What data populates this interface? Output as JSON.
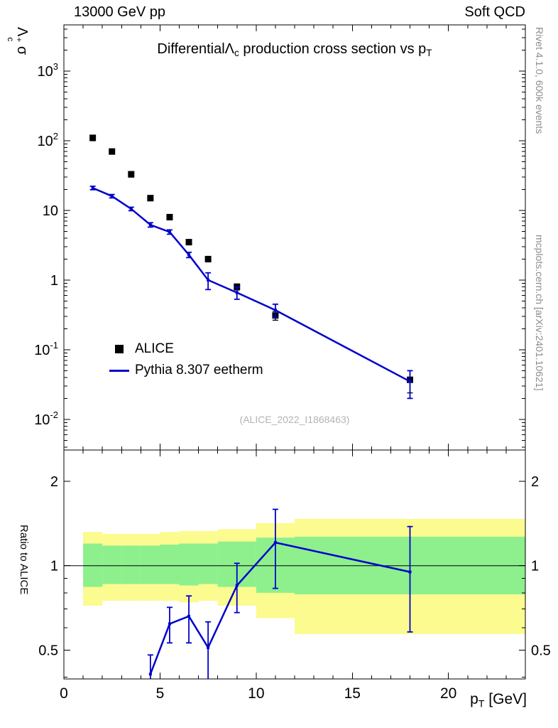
{
  "header": {
    "left": "13000 GeV pp",
    "right": "Soft QCD"
  },
  "title": {
    "pre": "Differential",
    "lambda": "Λ",
    "lambda_sub": "c",
    "mid": " production cross section vs p",
    "sub": "T"
  },
  "axis_labels": {
    "y_main": {
      "lambda": "Λ",
      "sup": "+",
      "sub": "c",
      "rest": " σ"
    },
    "y_ratio": "Ratio to ALICE",
    "x": {
      "base": "p",
      "sub": "T",
      "rest": " [GeV]"
    }
  },
  "legend": {
    "items": [
      {
        "label": "ALICE"
      },
      {
        "label": "Pythia 8.307 eetherm"
      }
    ]
  },
  "watermark": "(ALICE_2022_I1868463)",
  "side_notes": {
    "top": "Rivet 4.1.0,  600k events",
    "bottom": "mcplots.cern.ch [arXiv:2401.10621]"
  },
  "colors": {
    "alice": "#000000",
    "pythia": "#0000cc",
    "band_yellow": "#fbfb8f",
    "band_green": "#8df08d",
    "frame": "#000000"
  },
  "chart_data": [
    {
      "type": "line",
      "panel": "main",
      "title": "Differential Λc production cross section vs pT",
      "xlabel": "pT [GeV]",
      "ylabel": "Λc+ σ",
      "xlim": [
        0,
        24
      ],
      "xticks": [
        0,
        5,
        10,
        15,
        20
      ],
      "x_minor_step": 1,
      "ylog": true,
      "ylim": [
        0.00363,
        4600
      ],
      "ytick_exponents": [
        3,
        2,
        1,
        0,
        -1,
        -2
      ],
      "grid": false,
      "legend_position": "left-middle",
      "series": [
        {
          "name": "ALICE",
          "type": "points",
          "marker": "square",
          "color": "#000000",
          "x": [
            1.5,
            2.5,
            3.5,
            4.5,
            5.5,
            6.5,
            7.5,
            9,
            11,
            18
          ],
          "y": [
            110,
            70,
            33,
            15,
            8,
            3.5,
            2.0,
            0.8,
            0.31,
            0.037
          ],
          "yerr": [
            10,
            6,
            3,
            1.3,
            0.7,
            0.3,
            0.18,
            0.08,
            0.045,
            0.013
          ]
        },
        {
          "name": "Pythia 8.307 eetherm",
          "type": "line+points",
          "color": "#0000cc",
          "x": [
            1.5,
            2.5,
            3.5,
            4.5,
            5.5,
            6.5,
            7.5,
            9,
            11,
            18
          ],
          "y": [
            21,
            16,
            10.5,
            6.2,
            4.9,
            2.3,
            1.0,
            0.66,
            0.37,
            0.035
          ],
          "yerr": [
            1.2,
            0.9,
            0.6,
            0.45,
            0.35,
            0.2,
            0.27,
            0.13,
            0.08,
            0.015
          ]
        }
      ]
    },
    {
      "type": "ratio",
      "panel": "ratio",
      "ylabel": "Ratio to ALICE",
      "xlim": [
        0,
        24
      ],
      "xticks": [
        0,
        5,
        10,
        15,
        20
      ],
      "ylog": true,
      "ylim": [
        0.394,
        2.59
      ],
      "yticks": [
        0.5,
        1,
        2
      ],
      "y_minor": [
        0.4,
        0.6,
        0.7,
        0.8,
        0.9
      ],
      "reference_line": 1,
      "bands": {
        "edges": [
          1,
          2,
          3,
          4,
          5,
          6,
          7,
          8,
          10,
          12,
          24
        ],
        "yellow_lo": [
          0.72,
          0.75,
          0.75,
          0.75,
          0.75,
          0.74,
          0.75,
          0.72,
          0.65,
          0.57
        ],
        "yellow_hi": [
          1.32,
          1.3,
          1.3,
          1.3,
          1.32,
          1.33,
          1.33,
          1.35,
          1.42,
          1.47
        ],
        "green_lo": [
          0.84,
          0.86,
          0.86,
          0.86,
          0.86,
          0.85,
          0.86,
          0.84,
          0.8,
          0.79
        ],
        "green_hi": [
          1.2,
          1.18,
          1.18,
          1.18,
          1.19,
          1.2,
          1.2,
          1.22,
          1.26,
          1.27
        ]
      },
      "series": [
        {
          "name": "Pythia/ALICE",
          "color": "#0000cc",
          "x": [
            4.5,
            5.5,
            6.5,
            7.5,
            9,
            11,
            18
          ],
          "y": [
            0.41,
            0.62,
            0.66,
            0.51,
            0.85,
            1.21,
            0.95
          ],
          "yerr_lo": [
            0.12,
            0.09,
            0.13,
            0.15,
            0.17,
            0.38,
            0.37
          ],
          "yerr_hi": [
            0.07,
            0.09,
            0.12,
            0.12,
            0.17,
            0.38,
            0.43
          ]
        }
      ]
    }
  ]
}
